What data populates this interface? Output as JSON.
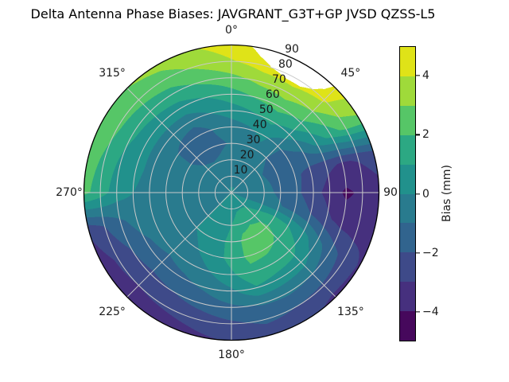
{
  "chart_data": {
    "type": "heatmap",
    "projection": "polar",
    "title": "Delta Antenna Phase Biases: JAVGRANT_G3T+GP JVSD QZSS-L5",
    "background": "#ffffff",
    "grid_on": true,
    "grid_color": "#c9c9c9",
    "outline_color": "#000000",
    "text_color": "#1a1a1a",
    "azimuth_tick_angles": [
      0,
      45,
      90,
      135,
      180,
      225,
      270,
      315
    ],
    "azimuth_tick_labels": [
      "0°",
      "45°",
      "90",
      "135°",
      "180°",
      "225°",
      "270°",
      "315°"
    ],
    "radial_ticks": [
      10,
      20,
      30,
      40,
      50,
      60,
      70,
      80,
      90
    ],
    "radial_tick_labels": [
      "10",
      "20",
      "30",
      "40",
      "50",
      "60",
      "70",
      "80",
      "90"
    ],
    "radial_max": 90,
    "radial_label_angle_deg": 23,
    "colorbar": {
      "label": "Bias (mm)",
      "vmin": -5,
      "vmax": 5,
      "level_step": 1,
      "tick_values": [
        4,
        2,
        0,
        -2,
        -4
      ],
      "tick_labels": [
        "4",
        "2",
        "0",
        "−2",
        "−4"
      ],
      "colors_low_to_high": [
        "#46085c",
        "#46307e",
        "#3e4a89",
        "#31648e",
        "#297b8e",
        "#21918c",
        "#2ca883",
        "#56c667",
        "#9fda3a",
        "#dfe318"
      ]
    },
    "grid": {
      "azimuth_deg": [
        0,
        15,
        30,
        45,
        60,
        75,
        90,
        105,
        120,
        135,
        150,
        165,
        180,
        195,
        210,
        225,
        240,
        255,
        270,
        285,
        300,
        315,
        330,
        345
      ],
      "zenith_deg": [
        0,
        10,
        20,
        30,
        40,
        50,
        60,
        70,
        80,
        90
      ],
      "bias_mm": [
        [
          0.1,
          -0.2,
          -0.5,
          -0.9,
          -0.5,
          0.5,
          1.6,
          2.7,
          3.9,
          4.6
        ],
        [
          0.1,
          -0.2,
          -0.4,
          -0.6,
          -0.2,
          0.9,
          2.1,
          3.3,
          4.5,
          4.8
        ],
        [
          0.1,
          -0.2,
          -0.3,
          -0.4,
          0.3,
          1.2,
          2.4,
          3.5,
          4.6,
          4.8
        ],
        [
          0.1,
          -0.3,
          -0.6,
          -1.0,
          -0.8,
          0.5,
          1.8,
          3.0,
          4.2,
          4.7
        ],
        [
          0.1,
          -0.4,
          -0.9,
          -1.5,
          -1.6,
          -1.0,
          0.3,
          1.4,
          2.4,
          2.8
        ],
        [
          0.0,
          -0.4,
          -0.8,
          -1.3,
          -1.8,
          -2.3,
          -2.8,
          -3.1,
          -2.9,
          -2.5
        ],
        [
          0.0,
          -0.3,
          -0.7,
          -1.2,
          -1.8,
          -2.6,
          -3.4,
          -4.2,
          -3.8,
          -3.4
        ],
        [
          0.0,
          -0.2,
          -0.5,
          -0.9,
          -1.4,
          -2.0,
          -2.8,
          -3.4,
          -3.5,
          -3.3
        ],
        [
          0.0,
          0.2,
          0.8,
          1.2,
          1.0,
          0.4,
          -0.6,
          -1.6,
          -2.4,
          -3.1
        ],
        [
          0.1,
          0.8,
          1.8,
          2.2,
          1.9,
          1.4,
          0.5,
          -1.0,
          -2.2,
          -3.3
        ],
        [
          0.1,
          0.9,
          1.9,
          2.3,
          2.2,
          1.6,
          0.6,
          -0.8,
          -2.0,
          -2.6
        ],
        [
          0.1,
          0.8,
          1.7,
          2.2,
          2.2,
          1.8,
          0.9,
          -0.9,
          -1.8,
          -2.5
        ],
        [
          0.1,
          0.4,
          1.0,
          1.4,
          1.4,
          0.8,
          -0.2,
          -1.2,
          -2.2,
          -2.9
        ],
        [
          0.1,
          0.2,
          0.4,
          0.6,
          0.5,
          0.0,
          -0.8,
          -1.6,
          -2.6,
          -3.2
        ],
        [
          0.1,
          0.1,
          0.2,
          0.2,
          0.0,
          -0.5,
          -1.2,
          -2.0,
          -2.8,
          -3.6
        ],
        [
          0.1,
          0.0,
          0.0,
          0.0,
          -0.3,
          -0.8,
          -1.4,
          -2.2,
          -3.0,
          -3.8
        ],
        [
          0.0,
          -0.1,
          -0.2,
          -0.1,
          -0.2,
          -0.6,
          -1.2,
          -2.0,
          -2.8,
          -3.6
        ],
        [
          0.0,
          -0.2,
          -0.3,
          -0.3,
          -0.3,
          -0.2,
          -0.6,
          -1.2,
          -2.0,
          -2.8
        ],
        [
          0.0,
          -0.3,
          -0.3,
          -0.3,
          -0.3,
          -0.2,
          0.0,
          0.5,
          1.5,
          2.3
        ],
        [
          0.0,
          -0.3,
          -0.4,
          -0.5,
          -0.4,
          -0.2,
          0.2,
          0.8,
          1.8,
          2.6
        ],
        [
          0.0,
          -0.3,
          -0.5,
          -0.8,
          -0.8,
          -0.4,
          0.4,
          1.2,
          2.2,
          2.9
        ],
        [
          0.1,
          -0.3,
          -0.8,
          -1.4,
          -1.3,
          -0.5,
          0.5,
          1.4,
          2.4,
          3.0
        ],
        [
          0.1,
          -0.3,
          -0.9,
          -1.6,
          -1.6,
          -0.6,
          0.6,
          1.6,
          2.6,
          3.3
        ],
        [
          0.1,
          -0.2,
          -0.8,
          -1.2,
          -0.9,
          0.0,
          1.0,
          2.2,
          3.2,
          3.9
        ]
      ]
    },
    "no_data_region": {
      "description": "white wedge (masked data) near outer rim between azimuth 8° and 44°",
      "boundary_az_r": [
        [
          8,
          90
        ],
        [
          12,
          85
        ],
        [
          18,
          80
        ],
        [
          26,
          77
        ],
        [
          33,
          77
        ],
        [
          38,
          80
        ],
        [
          42,
          85
        ],
        [
          44,
          90
        ]
      ]
    }
  }
}
